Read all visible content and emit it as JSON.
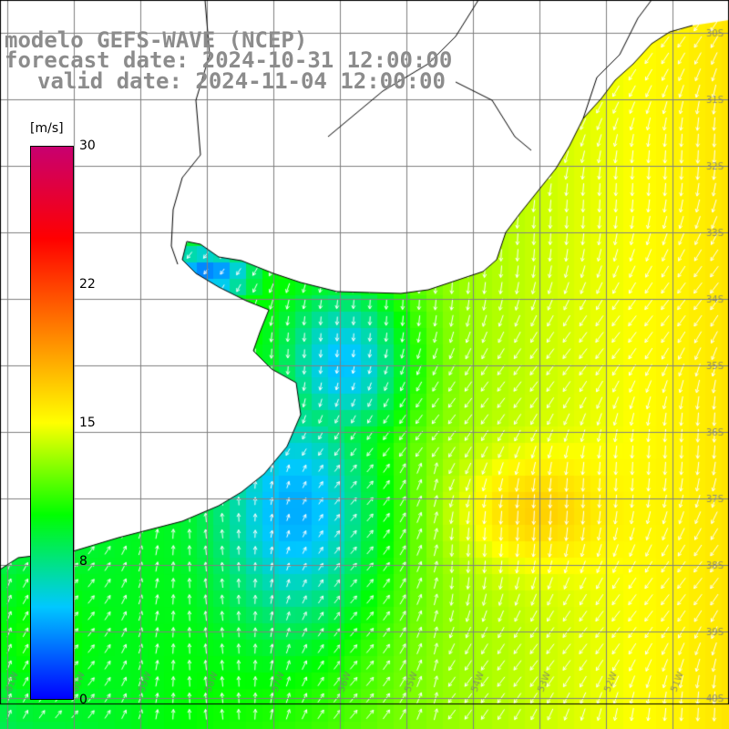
{
  "title": {
    "line1": "modelo GEFS-WAVE (NCEP)",
    "line2": "forecast date: 2024-10-31 12:00:00",
    "line3": "valid date: 2024-11-04 12:00:00"
  },
  "legend": {
    "unit": "[m/s]",
    "ticks": [
      "30",
      "22",
      "15",
      "8",
      "0"
    ],
    "colors": [
      "#0000ff",
      "#00c8ff",
      "#00ff00",
      "#ffff00",
      "#ff8000",
      "#ff0000",
      "#c80070"
    ],
    "range": [
      0,
      30
    ]
  },
  "map": {
    "lat_labels": [
      "30S",
      "31S",
      "32S",
      "33S",
      "34S",
      "35S",
      "36S",
      "37S",
      "38S",
      "39S",
      "40S"
    ],
    "lon_labels": [
      "61W",
      "60W",
      "59W",
      "58W",
      "57W",
      "56W",
      "55W",
      "54W",
      "53W",
      "52W",
      "51W"
    ],
    "land_color": "#ffffff",
    "grid_color": "#808080",
    "arrow_color": "#ffffff"
  }
}
